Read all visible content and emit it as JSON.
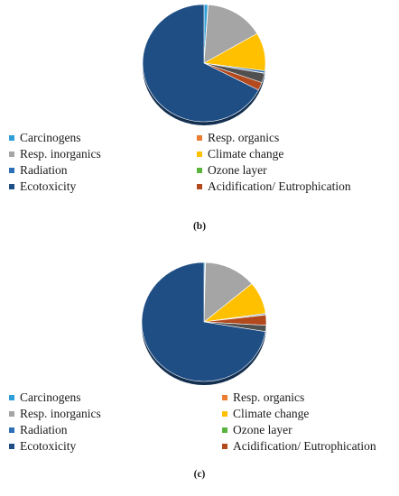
{
  "categories": [
    {
      "label": "Carcinogens",
      "color": "#2e9fd8"
    },
    {
      "label": "Resp. organics",
      "color": "#ed7d31"
    },
    {
      "label": "Resp. inorganics",
      "color": "#a5a5a5"
    },
    {
      "label": "Climate change",
      "color": "#ffc000"
    },
    {
      "label": "Radiation",
      "color": "#2f6fb5"
    },
    {
      "label": "Ozone layer",
      "color": "#5ab33c"
    },
    {
      "label": "Ecotoxicity",
      "color": "#1f4e85"
    },
    {
      "label": "Acidification/ Eutrophication",
      "color": "#b24a1e"
    }
  ],
  "extra_colors": {
    "land_use": "#505050"
  },
  "chart_data": [
    {
      "type": "pie",
      "caption": "(b)",
      "slices": [
        {
          "name": "Carcinogens",
          "value": 1.0
        },
        {
          "name": "Resp. organics",
          "value": 0.1
        },
        {
          "name": "Resp. inorganics",
          "value": 15.5
        },
        {
          "name": "Climate change",
          "value": 10.5
        },
        {
          "name": "Radiation",
          "value": 0.6
        },
        {
          "name": "Ozone layer",
          "value": 0.1
        },
        {
          "name": "",
          "value": 2.6,
          "color_key": "land_use"
        },
        {
          "name": "Acidification/ Eutrophication",
          "value": 2.2
        },
        {
          "name": "Ecotoxicity",
          "value": 67.4
        }
      ]
    },
    {
      "type": "pie",
      "caption": "(c)",
      "slices": [
        {
          "name": "Carcinogens",
          "value": 0.3
        },
        {
          "name": "Resp. organics",
          "value": 0.1
        },
        {
          "name": "Resp. inorganics",
          "value": 13.5
        },
        {
          "name": "Climate change",
          "value": 8.8
        },
        {
          "name": "Radiation",
          "value": 0.3
        },
        {
          "name": "Ozone layer",
          "value": 0.1
        },
        {
          "name": "Acidification/ Eutrophication",
          "value": 2.8
        },
        {
          "name": "",
          "value": 1.7,
          "color_key": "land_use"
        },
        {
          "name": "Ecotoxicity",
          "value": 72.4
        }
      ]
    }
  ]
}
